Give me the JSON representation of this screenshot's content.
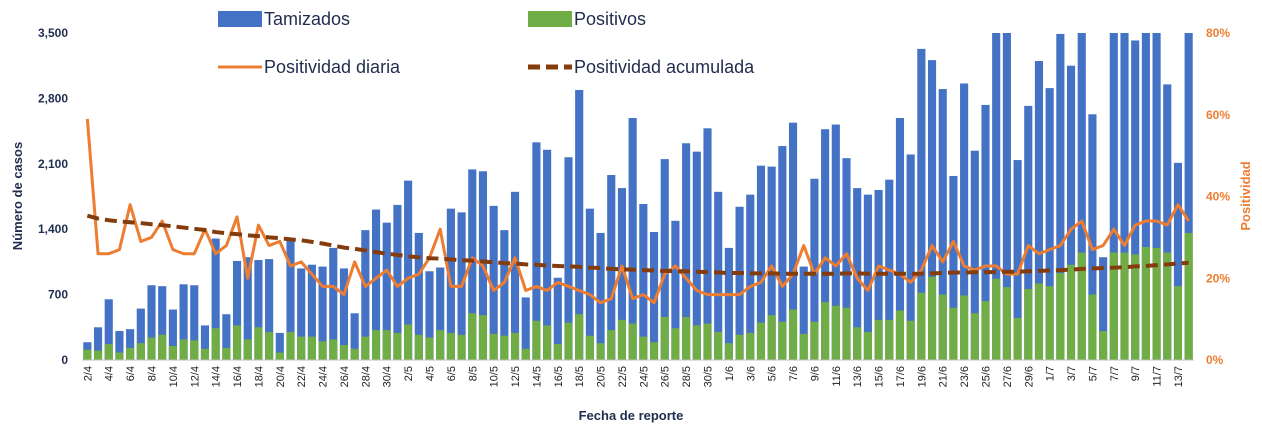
{
  "chart_data": {
    "type": "bar-line",
    "y_axis_label": "Número de casos",
    "y2_axis_label": "Positividad",
    "x_axis_label": "Fecha de reporte",
    "categories": [
      "2/4",
      null,
      "4/4",
      null,
      "6/4",
      null,
      "8/4",
      null,
      "10/4",
      null,
      "12/4",
      null,
      "14/4",
      null,
      "16/4",
      null,
      "18/4",
      null,
      "20/4",
      null,
      "22/4",
      null,
      "24/4",
      null,
      "26/4",
      null,
      "28/4",
      null,
      "30/4",
      null,
      "2/5",
      null,
      "4/5",
      null,
      "6/5",
      null,
      "8/5",
      null,
      "10/5",
      null,
      "12/5",
      null,
      "14/5",
      null,
      "16/5",
      null,
      "18/5",
      null,
      "20/5",
      null,
      "22/5",
      null,
      "24/5",
      null,
      "26/5",
      null,
      "28/5",
      null,
      "30/5",
      null,
      "1/6",
      null,
      "3/6",
      null,
      "5/6",
      null,
      "7/6",
      null,
      "9/6",
      null,
      "11/6",
      null,
      "13/6",
      null,
      "15/6",
      null,
      "17/6",
      null,
      "19/6",
      null,
      "21/6",
      null,
      "23/6",
      null,
      "25/6",
      null,
      "27/6",
      null,
      "29/6",
      null,
      "1/7",
      null,
      "3/7",
      null,
      "5/7",
      null,
      "7/7",
      null,
      "9/7",
      null,
      "11/7",
      null,
      "13/7",
      null
    ],
    "series": [
      {
        "name": "Tamizados",
        "type": "bar",
        "color": "#4472c4",
        "values": [
          190,
          350,
          650,
          310,
          330,
          550,
          800,
          790,
          540,
          810,
          800,
          370,
          1300,
          490,
          1060,
          1100,
          1070,
          1080,
          290,
          1290,
          980,
          1020,
          1000,
          1200,
          980,
          500,
          1390,
          1610,
          1470,
          1660,
          1920,
          1360,
          950,
          990,
          1620,
          1580,
          2040,
          2020,
          1650,
          1390,
          1800,
          670,
          2330,
          2250,
          880,
          2170,
          2890,
          1620,
          1360,
          1980,
          1840,
          2590,
          1670,
          1370,
          2150,
          1490,
          2320,
          2230,
          2480,
          1800,
          1200,
          1640,
          1770,
          2080,
          2070,
          2290,
          2540,
          1000,
          1940,
          2470,
          2520,
          2160,
          1840,
          1770,
          1820,
          1930,
          2590,
          2200,
          3330,
          3210,
          2900,
          1970,
          2960,
          2240,
          2730,
          3500,
          3500,
          2140,
          2720,
          3200,
          2910,
          3490,
          3150,
          3500,
          2630,
          1100,
          3500,
          3500,
          3420,
          3500,
          3500,
          2950,
          2110,
          3500
        ]
      },
      {
        "name": "Positivos",
        "type": "bar",
        "color": "#70ad47",
        "values": [
          110,
          100,
          170,
          80,
          130,
          180,
          240,
          270,
          150,
          220,
          210,
          120,
          340,
          130,
          370,
          220,
          350,
          300,
          80,
          300,
          250,
          250,
          200,
          220,
          160,
          120,
          250,
          320,
          320,
          290,
          380,
          270,
          240,
          320,
          290,
          270,
          500,
          480,
          280,
          260,
          290,
          120,
          420,
          370,
          170,
          400,
          490,
          260,
          180,
          320,
          430,
          390,
          250,
          190,
          460,
          340,
          460,
          370,
          390,
          300,
          180,
          270,
          290,
          400,
          480,
          410,
          540,
          280,
          410,
          620,
          580,
          560,
          350,
          300,
          430,
          430,
          530,
          420,
          720,
          890,
          700,
          560,
          690,
          500,
          630,
          870,
          780,
          450,
          760,
          820,
          790,
          930,
          1020,
          1150,
          700,
          310,
          1150,
          1150,
          1130,
          1210,
          1200,
          1150,
          790,
          1360
        ]
      },
      {
        "name": "Positividad diaria",
        "type": "line",
        "axis": "y2",
        "color": "#ed7d31",
        "dashed": false,
        "values": [
          59,
          26,
          26,
          27,
          38,
          29,
          30,
          34,
          27,
          26,
          26,
          32,
          26,
          28,
          35,
          20,
          33,
          28,
          29,
          23,
          24,
          21,
          18,
          18,
          16,
          24,
          18,
          20,
          22,
          18,
          20,
          21,
          25,
          32,
          18,
          18,
          25,
          23,
          17,
          19,
          25,
          17,
          18,
          17,
          19,
          18,
          17,
          16,
          14,
          15,
          23,
          15,
          16,
          14,
          21,
          23,
          20,
          17,
          16,
          16,
          16,
          16,
          18,
          19,
          23,
          18,
          21,
          28,
          21,
          25,
          23,
          26,
          20,
          17,
          23,
          22,
          21,
          19,
          22,
          28,
          24,
          29,
          23,
          22,
          23,
          23,
          21,
          21,
          28,
          26,
          27,
          28,
          32,
          34,
          27,
          28,
          32,
          28,
          33,
          34,
          34,
          33,
          38,
          34
        ]
      },
      {
        "name": "Positividad acumulada",
        "type": "line",
        "axis": "y2",
        "color": "#843c0c",
        "dashed": true,
        "values": [
          35.3,
          34.6,
          34.2,
          33.9,
          33.7,
          33.5,
          33.2,
          33.0,
          32.7,
          32.4,
          32.1,
          31.8,
          31.3,
          31.0,
          30.8,
          30.5,
          30.3,
          30.0,
          29.8,
          29.5,
          29.3,
          28.9,
          28.5,
          28.0,
          27.5,
          27.2,
          26.8,
          26.4,
          26.0,
          25.7,
          25.4,
          25.1,
          24.9,
          24.8,
          24.6,
          24.4,
          24.3,
          24.1,
          23.9,
          23.7,
          23.6,
          23.4,
          23.3,
          23.1,
          23.0,
          22.9,
          22.8,
          22.6,
          22.5,
          22.3,
          22.2,
          22.1,
          22.0,
          21.9,
          21.8,
          21.7,
          21.7,
          21.6,
          21.5,
          21.4,
          21.3,
          21.3,
          21.2,
          21.2,
          21.2,
          21.1,
          21.1,
          21.1,
          21.1,
          21.1,
          21.1,
          21.2,
          21.2,
          21.1,
          21.1,
          21.1,
          21.1,
          21.1,
          21.1,
          21.2,
          21.3,
          21.4,
          21.4,
          21.5,
          21.5,
          21.5,
          21.6,
          21.6,
          21.7,
          21.8,
          21.9,
          22.0,
          22.1,
          22.3,
          22.4,
          22.5,
          22.6,
          22.7,
          22.9,
          23.0,
          23.2,
          23.4,
          23.6,
          23.8
        ]
      }
    ],
    "ylim": [
      0,
      3500
    ],
    "yticks": [
      0,
      700,
      {
        "value": 1400,
        "label": "1,400"
      },
      {
        "value": 2100,
        "label": "2,100"
      },
      {
        "value": 2800,
        "label": "2,800"
      },
      {
        "value": 3500,
        "label": "3,500"
      }
    ],
    "y2lim": [
      0,
      80
    ],
    "y2ticks": [
      {
        "value": 0,
        "label": "0%"
      },
      {
        "value": 20,
        "label": "20%"
      },
      {
        "value": 40,
        "label": "40%"
      },
      {
        "value": 60,
        "label": "60%"
      },
      {
        "value": 80,
        "label": "80%"
      }
    ],
    "grid": false
  }
}
